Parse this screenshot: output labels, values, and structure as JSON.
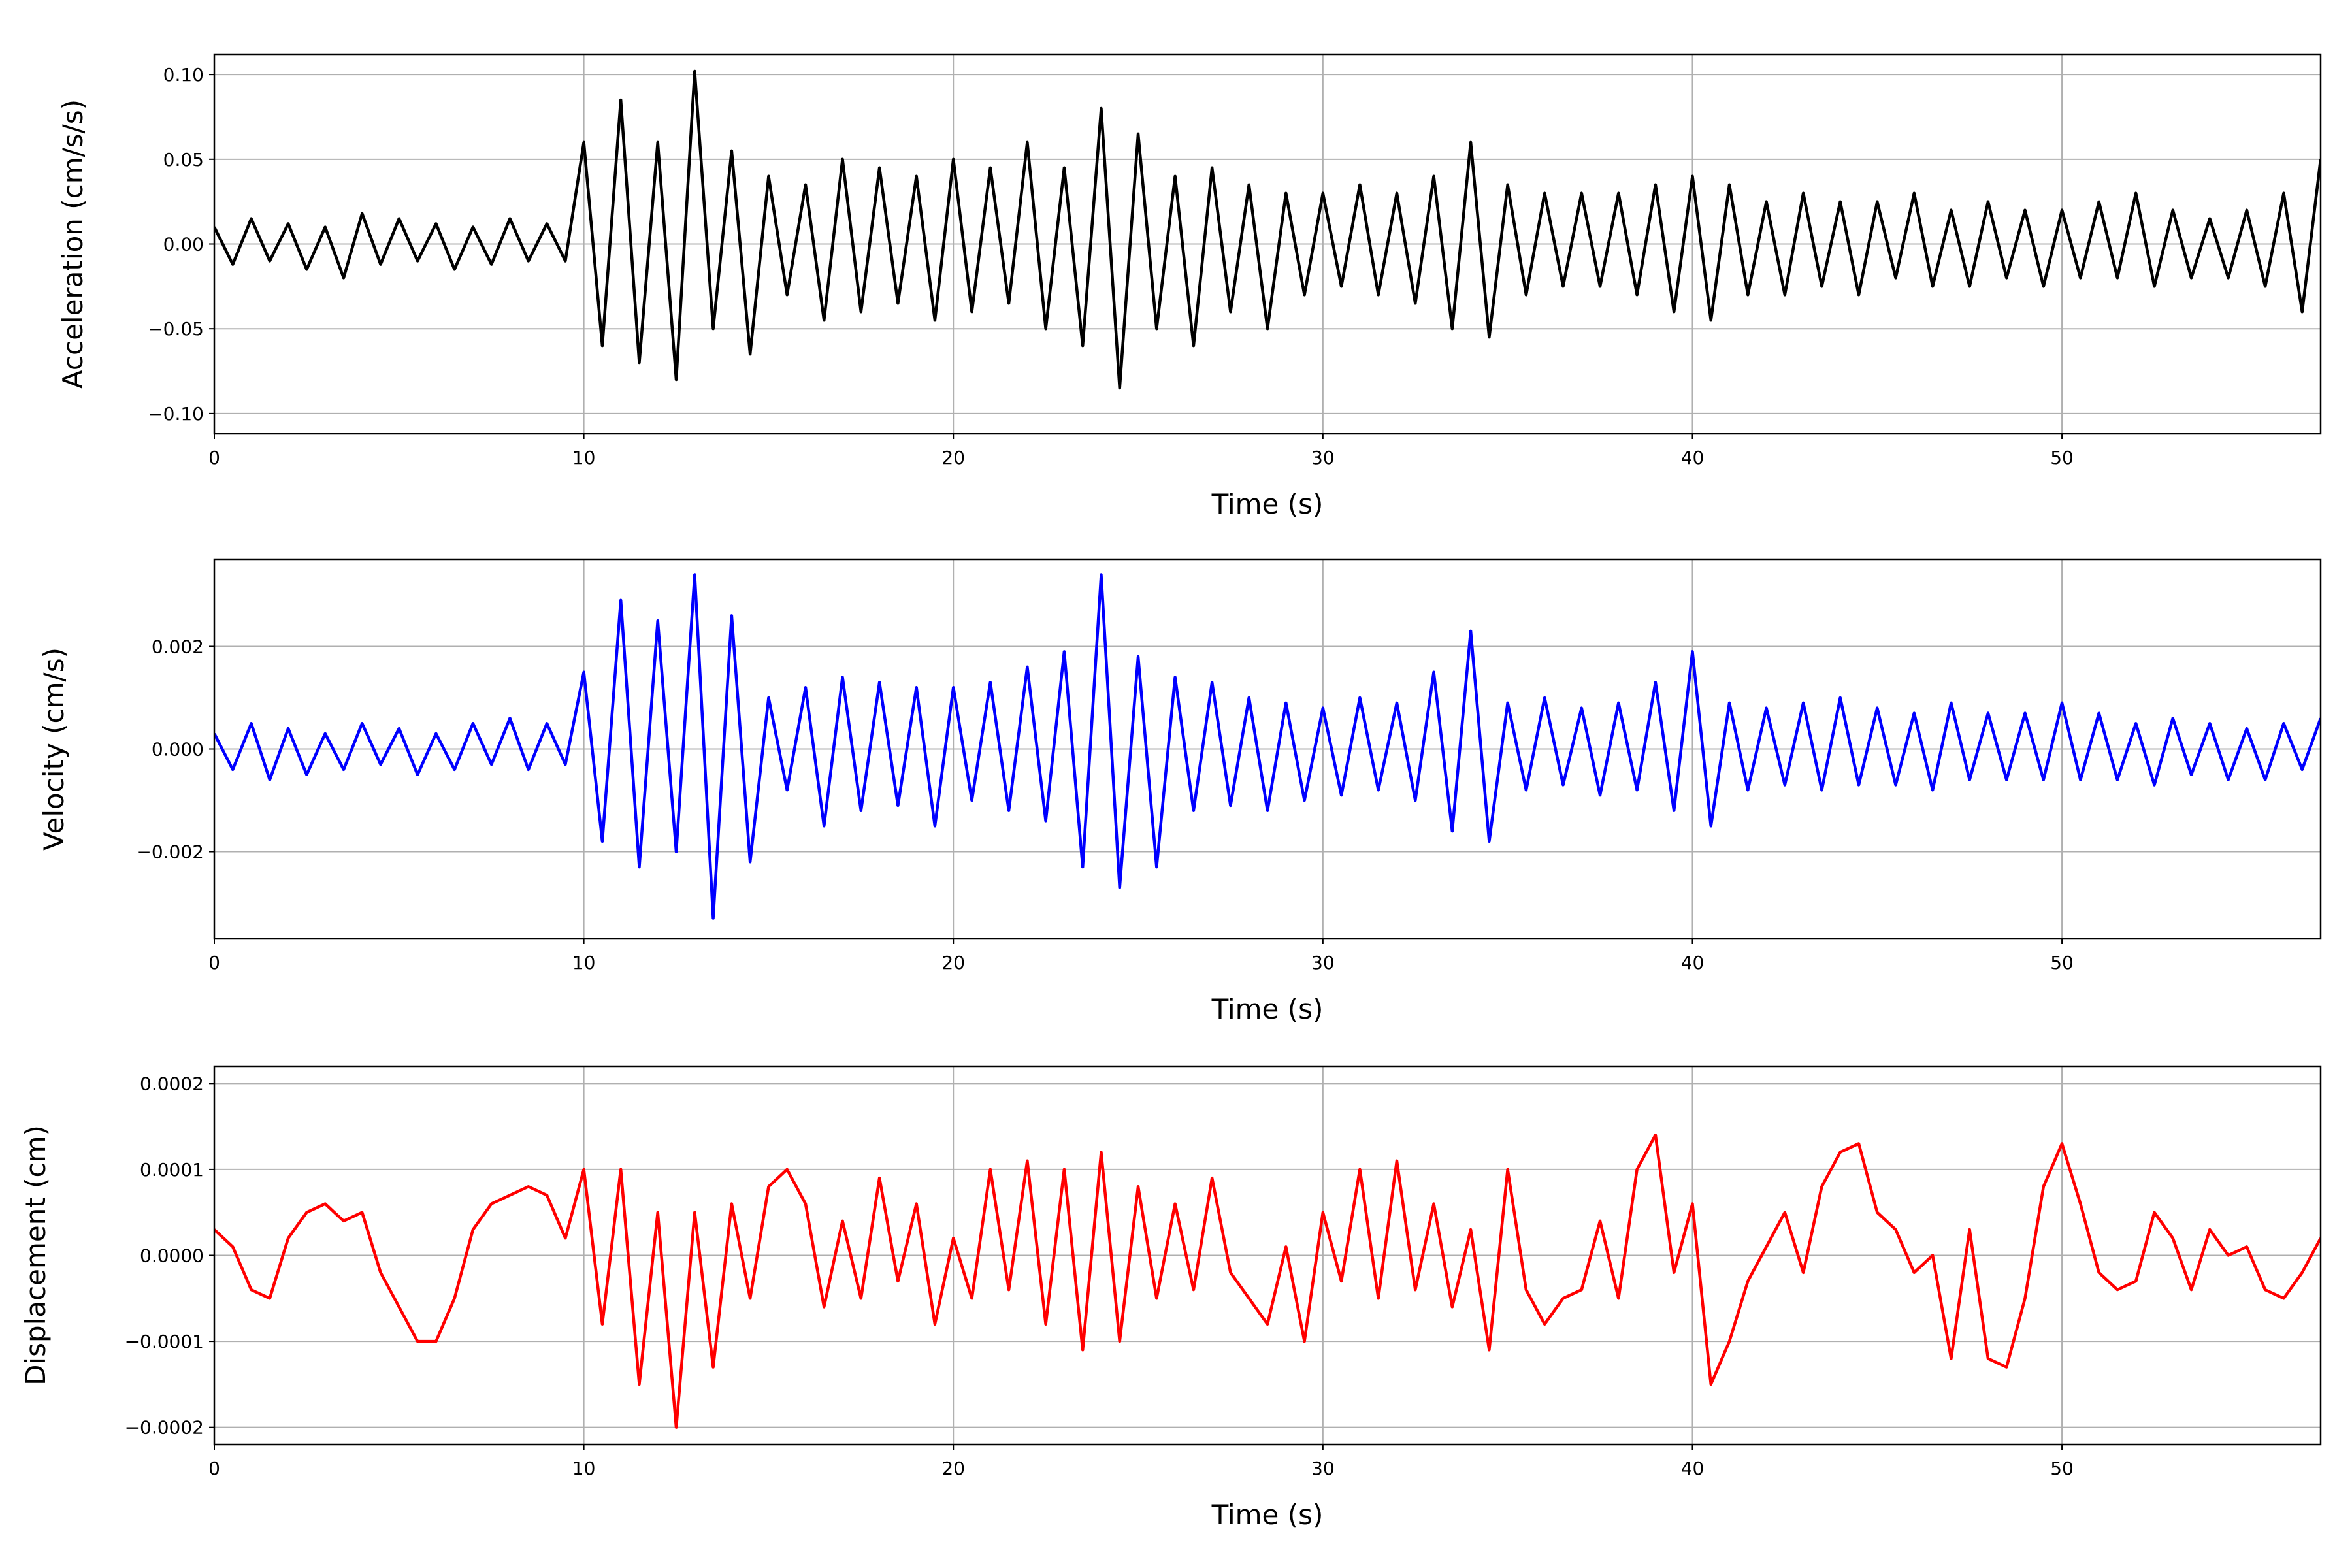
{
  "chart_data": [
    {
      "type": "line",
      "xlabel": "Time (s)",
      "ylabel": "Acceleration (cm/s/s)",
      "color": "#000000",
      "grid": true,
      "xlim": [
        0,
        57
      ],
      "xticks": [
        0,
        10,
        20,
        30,
        40,
        50
      ],
      "ylim": [
        -0.112,
        0.112
      ],
      "yticks": [
        {
          "value": -0.1,
          "label": "−0.10"
        },
        {
          "value": -0.05,
          "label": "−0.05"
        },
        {
          "value": 0,
          "label": "0.00"
        },
        {
          "value": 0.05,
          "label": "0.05"
        },
        {
          "value": 0.1,
          "label": "0.10"
        }
      ],
      "x": [
        0,
        0.5,
        1,
        1.5,
        2,
        2.5,
        3,
        3.5,
        4,
        4.5,
        5,
        5.5,
        6,
        6.5,
        7,
        7.5,
        8,
        8.5,
        9,
        9.5,
        10,
        10.5,
        11,
        11.5,
        12,
        12.5,
        13,
        13.5,
        14,
        14.5,
        15,
        15.5,
        16,
        16.5,
        17,
        17.5,
        18,
        18.5,
        19,
        19.5,
        20,
        20.5,
        21,
        21.5,
        22,
        22.5,
        23,
        23.5,
        24,
        24.5,
        25,
        25.5,
        26,
        26.5,
        27,
        27.5,
        28,
        28.5,
        29,
        29.5,
        30,
        30.5,
        31,
        31.5,
        32,
        32.5,
        33,
        33.5,
        34,
        34.5,
        35,
        35.5,
        36,
        36.5,
        37,
        37.5,
        38,
        38.5,
        39,
        39.5,
        40,
        40.5,
        41,
        41.5,
        42,
        42.5,
        43,
        43.5,
        44,
        44.5,
        45,
        45.5,
        46,
        46.5,
        47,
        47.5,
        48,
        48.5,
        49,
        49.5,
        50,
        50.5,
        51,
        51.5,
        52,
        52.5,
        53,
        53.5,
        54,
        54.5,
        55,
        55.5,
        56,
        56.5,
        57
      ],
      "values": [
        0.01,
        -0.012,
        0.015,
        -0.01,
        0.012,
        -0.015,
        0.01,
        -0.02,
        0.018,
        -0.012,
        0.015,
        -0.01,
        0.012,
        -0.015,
        0.01,
        -0.012,
        0.015,
        -0.01,
        0.012,
        -0.01,
        0.06,
        -0.06,
        0.085,
        -0.07,
        0.06,
        -0.08,
        0.102,
        -0.05,
        0.055,
        -0.065,
        0.04,
        -0.03,
        0.035,
        -0.045,
        0.05,
        -0.04,
        0.045,
        -0.035,
        0.04,
        -0.045,
        0.05,
        -0.04,
        0.045,
        -0.035,
        0.06,
        -0.05,
        0.045,
        -0.06,
        0.08,
        -0.085,
        0.065,
        -0.05,
        0.04,
        -0.06,
        0.045,
        -0.04,
        0.035,
        -0.05,
        0.03,
        -0.03,
        0.03,
        -0.025,
        0.035,
        -0.03,
        0.03,
        -0.035,
        0.04,
        -0.05,
        0.06,
        -0.055,
        0.035,
        -0.03,
        0.03,
        -0.025,
        0.03,
        -0.025,
        0.03,
        -0.03,
        0.035,
        -0.04,
        0.04,
        -0.045,
        0.035,
        -0.03,
        0.025,
        -0.03,
        0.03,
        -0.025,
        0.025,
        -0.03,
        0.025,
        -0.02,
        0.03,
        -0.025,
        0.02,
        -0.025,
        0.025,
        -0.02,
        0.02,
        -0.025,
        0.02,
        -0.02,
        0.025,
        -0.02,
        0.03,
        -0.025,
        0.02,
        -0.02,
        0.015,
        -0.02,
        0.02,
        -0.025,
        0.03,
        -0.04,
        0.05
      ]
    },
    {
      "type": "line",
      "xlabel": "Time (s)",
      "ylabel": "Velocity (cm/s)",
      "color": "#0000ff",
      "grid": true,
      "xlim": [
        0,
        57
      ],
      "xticks": [
        0,
        10,
        20,
        30,
        40,
        50
      ],
      "ylim": [
        -0.0037,
        0.0037
      ],
      "yticks": [
        {
          "value": -0.002,
          "label": "−0.002"
        },
        {
          "value": 0,
          "label": "0.000"
        },
        0.002
      ],
      "x": [
        0,
        0.5,
        1,
        1.5,
        2,
        2.5,
        3,
        3.5,
        4,
        4.5,
        5,
        5.5,
        6,
        6.5,
        7,
        7.5,
        8,
        8.5,
        9,
        9.5,
        10,
        10.5,
        11,
        11.5,
        12,
        12.5,
        13,
        13.5,
        14,
        14.5,
        15,
        15.5,
        16,
        16.5,
        17,
        17.5,
        18,
        18.5,
        19,
        19.5,
        20,
        20.5,
        21,
        21.5,
        22,
        22.5,
        23,
        23.5,
        24,
        24.5,
        25,
        25.5,
        26,
        26.5,
        27,
        27.5,
        28,
        28.5,
        29,
        29.5,
        30,
        30.5,
        31,
        31.5,
        32,
        32.5,
        33,
        33.5,
        34,
        34.5,
        35,
        35.5,
        36,
        36.5,
        37,
        37.5,
        38,
        38.5,
        39,
        39.5,
        40,
        40.5,
        41,
        41.5,
        42,
        42.5,
        43,
        43.5,
        44,
        44.5,
        45,
        45.5,
        46,
        46.5,
        47,
        47.5,
        48,
        48.5,
        49,
        49.5,
        50,
        50.5,
        51,
        51.5,
        52,
        52.5,
        53,
        53.5,
        54,
        54.5,
        55,
        55.5,
        56,
        56.5,
        57
      ],
      "values": [
        0.0003,
        -0.0004,
        0.0005,
        -0.0006,
        0.0004,
        -0.0005,
        0.0003,
        -0.0004,
        0.0005,
        -0.0003,
        0.0004,
        -0.0005,
        0.0003,
        -0.0004,
        0.0005,
        -0.0003,
        0.0006,
        -0.0004,
        0.0005,
        -0.0003,
        0.0015,
        -0.0018,
        0.0029,
        -0.0023,
        0.0025,
        -0.002,
        0.0034,
        -0.0033,
        0.0026,
        -0.0022,
        0.001,
        -0.0008,
        0.0012,
        -0.0015,
        0.0014,
        -0.0012,
        0.0013,
        -0.0011,
        0.0012,
        -0.0015,
        0.0012,
        -0.001,
        0.0013,
        -0.0012,
        0.0016,
        -0.0014,
        0.0019,
        -0.0023,
        0.0034,
        -0.0027,
        0.0018,
        -0.0023,
        0.0014,
        -0.0012,
        0.0013,
        -0.0011,
        0.001,
        -0.0012,
        0.0009,
        -0.001,
        0.0008,
        -0.0009,
        0.001,
        -0.0008,
        0.0009,
        -0.001,
        0.0015,
        -0.0016,
        0.0023,
        -0.0018,
        0.0009,
        -0.0008,
        0.001,
        -0.0007,
        0.0008,
        -0.0009,
        0.0009,
        -0.0008,
        0.0013,
        -0.0012,
        0.0019,
        -0.0015,
        0.0009,
        -0.0008,
        0.0008,
        -0.0007,
        0.0009,
        -0.0008,
        0.001,
        -0.0007,
        0.0008,
        -0.0007,
        0.0007,
        -0.0008,
        0.0009,
        -0.0006,
        0.0007,
        -0.0006,
        0.0007,
        -0.0006,
        0.0009,
        -0.0006,
        0.0007,
        -0.0006,
        0.0005,
        -0.0007,
        0.0006,
        -0.0005,
        0.0005,
        -0.0006,
        0.0004,
        -0.0006,
        0.0005,
        -0.0004,
        0.0006
      ]
    },
    {
      "type": "line",
      "xlabel": "Time (s)",
      "ylabel": "Displacement (cm)",
      "color": "#ff0000",
      "grid": true,
      "xlim": [
        0,
        57
      ],
      "xticks": [
        0,
        10,
        20,
        30,
        40,
        50
      ],
      "ylim": [
        -0.00022,
        0.00022
      ],
      "yticks": [
        {
          "value": -0.0002,
          "label": "−0.0002"
        },
        {
          "value": -0.0001,
          "label": "−0.0001"
        },
        {
          "value": 0,
          "label": "0.0000"
        },
        {
          "value": 0.0001,
          "label": "0.0001"
        },
        {
          "value": 0.0002,
          "label": "0.0002"
        }
      ],
      "x": [
        0,
        0.5,
        1,
        1.5,
        2,
        2.5,
        3,
        3.5,
        4,
        4.5,
        5,
        5.5,
        6,
        6.5,
        7,
        7.5,
        8,
        8.5,
        9,
        9.5,
        10,
        10.5,
        11,
        11.5,
        12,
        12.5,
        13,
        13.5,
        14,
        14.5,
        15,
        15.5,
        16,
        16.5,
        17,
        17.5,
        18,
        18.5,
        19,
        19.5,
        20,
        20.5,
        21,
        21.5,
        22,
        22.5,
        23,
        23.5,
        24,
        24.5,
        25,
        25.5,
        26,
        26.5,
        27,
        27.5,
        28,
        28.5,
        29,
        29.5,
        30,
        30.5,
        31,
        31.5,
        32,
        32.5,
        33,
        33.5,
        34,
        34.5,
        35,
        35.5,
        36,
        36.5,
        37,
        37.5,
        38,
        38.5,
        39,
        39.5,
        40,
        40.5,
        41,
        41.5,
        42,
        42.5,
        43,
        43.5,
        44,
        44.5,
        45,
        45.5,
        46,
        46.5,
        47,
        47.5,
        48,
        48.5,
        49,
        49.5,
        50,
        50.5,
        51,
        51.5,
        52,
        52.5,
        53,
        53.5,
        54,
        54.5,
        55,
        55.5,
        56,
        56.5,
        57
      ],
      "values": [
        3e-05,
        1e-05,
        -4e-05,
        -5e-05,
        2e-05,
        5e-05,
        6e-05,
        4e-05,
        5e-05,
        -2e-05,
        -6e-05,
        -0.0001,
        -0.0001,
        -5e-05,
        3e-05,
        6e-05,
        7e-05,
        8e-05,
        7e-05,
        2e-05,
        0.0001,
        -8e-05,
        0.0001,
        -0.00015,
        5e-05,
        -0.0002,
        5e-05,
        -0.00013,
        6e-05,
        -5e-05,
        8e-05,
        0.0001,
        6e-05,
        -6e-05,
        4e-05,
        -5e-05,
        9e-05,
        -3e-05,
        6e-05,
        -8e-05,
        2e-05,
        -5e-05,
        0.0001,
        -4e-05,
        0.00011,
        -8e-05,
        0.0001,
        -0.00011,
        0.00012,
        -0.0001,
        8e-05,
        -5e-05,
        6e-05,
        -4e-05,
        9e-05,
        -2e-05,
        -5e-05,
        -8e-05,
        1e-05,
        -0.0001,
        5e-05,
        -3e-05,
        0.0001,
        -5e-05,
        0.00011,
        -4e-05,
        6e-05,
        -6e-05,
        3e-05,
        -0.00011,
        0.0001,
        -4e-05,
        -8e-05,
        -5e-05,
        -4e-05,
        4e-05,
        -5e-05,
        0.0001,
        0.00014,
        -2e-05,
        6e-05,
        -0.00015,
        -0.0001,
        -3e-05,
        1e-05,
        5e-05,
        -2e-05,
        8e-05,
        0.00012,
        0.00013,
        5e-05,
        3e-05,
        -2e-05,
        0,
        -0.00012,
        3e-05,
        -0.00012,
        -0.00013,
        -5e-05,
        8e-05,
        0.00013,
        6e-05,
        -2e-05,
        -4e-05,
        -3e-05,
        5e-05,
        2e-05,
        -4e-05,
        3e-05,
        0,
        1e-05,
        -4e-05,
        -5e-05,
        -2e-05,
        2e-05
      ]
    }
  ]
}
